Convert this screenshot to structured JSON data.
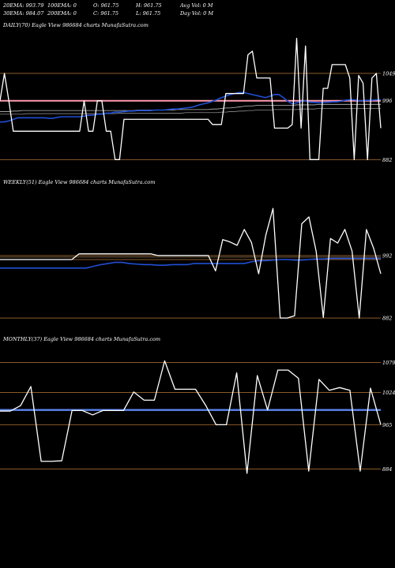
{
  "header": {
    "row1": [
      "20EMA: 993.79",
      "100EMA: 0",
      "O: 961.75",
      "H: 961.75",
      "Avg Vol: 0  M"
    ],
    "row2": [
      "30EMA: 984.07",
      "200EMA: 0",
      "C: 961.75",
      "L: 961.75",
      "Day Vol: 0  M"
    ]
  },
  "colors": {
    "background": "#000000",
    "price": "#ffffff",
    "ema": "#1f4fd6",
    "ema_light": "#5b86f0",
    "level": "#8a5a2a",
    "pink": "#ff9bb0"
  },
  "chart_data": [
    {
      "type": "line",
      "panel": "daily",
      "title": "DAILY(70) Eagle  View  986684  charts MunafaSutra.com",
      "yticks": [
        "1049",
        "996",
        "882"
      ],
      "yvalues": [
        1049,
        996,
        882
      ],
      "ylim": [
        855,
        1130
      ],
      "series": [
        {
          "role": "price",
          "values": [
            996,
            1049,
            996,
            937,
            937,
            937,
            937,
            937,
            937,
            937,
            937,
            937,
            937,
            937,
            937,
            937,
            937,
            937,
            937,
            996,
            937,
            937,
            996,
            996,
            937,
            937,
            882,
            882,
            960,
            960,
            960,
            960,
            960,
            960,
            960,
            960,
            960,
            960,
            960,
            960,
            960,
            960,
            960,
            960,
            960,
            960,
            960,
            960,
            950,
            950,
            950,
            1010,
            1010,
            1010,
            1010,
            1010,
            1085,
            1092,
            1040,
            1040,
            1040,
            1040,
            943,
            943,
            943,
            943,
            950,
            1117,
            943,
            1102,
            882,
            882,
            882,
            1020,
            1020,
            1066,
            1066,
            1066,
            1066,
            1040,
            882,
            1045,
            1030,
            882,
            1040,
            1049,
            943
          ]
        },
        {
          "role": "ema",
          "values": [
            955,
            955,
            957,
            960,
            963,
            963,
            963,
            963,
            963,
            963,
            963,
            962,
            962,
            964,
            965,
            965,
            965,
            965,
            965,
            966,
            968,
            968,
            970,
            970,
            972,
            972,
            974,
            974,
            975,
            976,
            976,
            977,
            977,
            977,
            977,
            978,
            978,
            978,
            979,
            980,
            980,
            981,
            982,
            983,
            985,
            988,
            990,
            992,
            995,
            998,
            1002,
            1005,
            1008,
            1010,
            1012,
            1012,
            1010,
            1008,
            1006,
            1004,
            1002,
            1005,
            1008,
            1008,
            1002,
            995,
            990,
            992,
            995,
            996,
            993,
            993,
            992,
            993,
            993,
            994,
            994,
            995,
            997,
            998,
            998,
            996,
            996,
            997,
            997,
            998,
            998
          ]
        },
        {
          "role": "ma1",
          "values": [
            975,
            975,
            975,
            976,
            976,
            977,
            977,
            977,
            977,
            977,
            977,
            977,
            977,
            977,
            977,
            977,
            977,
            977,
            977,
            977,
            977,
            977,
            977,
            977,
            977,
            977,
            977,
            977,
            977,
            977,
            977,
            978,
            978,
            978,
            978,
            978,
            978,
            978,
            978,
            978,
            979,
            979,
            979,
            979,
            979,
            979,
            979,
            979,
            980,
            980,
            981,
            982,
            982,
            983,
            984,
            985,
            986,
            986,
            987,
            987,
            987,
            987,
            987,
            987,
            987,
            987,
            987,
            988,
            988,
            988,
            988,
            988,
            989,
            989,
            989,
            989,
            989,
            989,
            989,
            989,
            989,
            989,
            989,
            989,
            989,
            989,
            989
          ]
        },
        {
          "role": "ma2",
          "values": [
            970,
            970,
            970,
            970,
            970,
            970,
            971,
            971,
            971,
            971,
            971,
            971,
            971,
            971,
            971,
            971,
            971,
            971,
            971,
            971,
            971,
            971,
            971,
            971,
            971,
            971,
            971,
            972,
            972,
            972,
            972,
            972,
            972,
            972,
            972,
            972,
            972,
            972,
            972,
            972,
            972,
            972,
            973,
            973,
            973,
            973,
            973,
            973,
            973,
            973,
            974,
            974,
            975,
            975,
            976,
            976,
            977,
            977,
            978,
            978,
            978,
            978,
            979,
            979,
            979,
            979,
            979,
            979,
            980,
            980,
            980,
            980,
            981,
            981,
            981,
            981,
            981,
            981,
            981,
            981,
            981,
            981,
            981,
            981,
            981,
            981,
            981
          ]
        }
      ],
      "levels": [
        1049,
        996,
        882
      ],
      "pink_level": 996
    },
    {
      "type": "line",
      "panel": "weekly",
      "title": "WEEKLY(51) Eagle  View  986684  charts MunafaSutra.com",
      "yticks": [
        "992",
        "882"
      ],
      "yvalues": [
        992,
        882
      ],
      "ylim": [
        860,
        1110
      ],
      "series": [
        {
          "role": "price",
          "values": [
            985,
            985,
            985,
            985,
            985,
            985,
            985,
            985,
            985,
            985,
            985,
            995,
            995,
            995,
            995,
            995,
            995,
            995,
            995,
            995,
            995,
            995,
            992,
            992,
            992,
            992,
            992,
            992,
            992,
            992,
            965,
            1020,
            1016,
            1010,
            1038,
            1015,
            960,
            1028,
            1075,
            882,
            882,
            886,
            1048,
            1060,
            1000,
            883,
            1022,
            1014,
            1038,
            1000,
            882,
            1038,
            1005,
            960
          ]
        },
        {
          "role": "ema",
          "values": [
            970,
            970,
            970,
            970,
            970,
            970,
            970,
            970,
            970,
            970,
            970,
            970,
            970,
            973,
            976,
            978,
            980,
            980,
            978,
            977,
            976,
            976,
            975,
            975,
            976,
            976,
            976,
            978,
            978,
            978,
            978,
            978,
            978,
            978,
            978,
            981,
            983,
            983,
            984,
            985,
            985,
            984,
            984,
            985,
            986,
            986,
            987,
            987,
            987,
            987,
            987,
            987,
            987,
            987
          ]
        }
      ],
      "levels": [
        992,
        985,
        882
      ],
      "pink_level": null
    },
    {
      "type": "line",
      "panel": "monthly",
      "title": "MONTHLY(37) Eagle  View  986684  charts MunafaSutra.com",
      "yticks": [
        "1079",
        "1024",
        "965",
        "884"
      ],
      "yvalues": [
        1079,
        1024,
        965,
        884
      ],
      "ylim": [
        850,
        1110
      ],
      "series": [
        {
          "role": "price",
          "values": [
            990,
            990,
            1000,
            1035,
            898,
            898,
            899,
            991,
            991,
            983,
            991,
            991,
            991,
            1025,
            1010,
            1010,
            1082,
            1030,
            1030,
            1030,
            1000,
            965,
            965,
            1060,
            876,
            1055,
            992,
            1065,
            1065,
            1050,
            880,
            1048,
            1028,
            1033,
            1028,
            880,
            1032,
            965
          ]
        },
        {
          "role": "ema",
          "values": [
            992,
            992,
            992,
            992,
            992,
            992,
            992,
            992,
            992,
            992,
            992,
            992,
            992,
            992,
            992,
            992,
            992,
            992,
            992,
            992,
            992,
            992,
            992,
            992,
            992,
            992,
            992,
            992,
            992,
            992,
            992,
            992,
            992,
            992,
            992,
            992,
            992,
            992
          ]
        }
      ],
      "levels": [
        1079,
        1024,
        965,
        884
      ],
      "pink_level": null
    }
  ]
}
